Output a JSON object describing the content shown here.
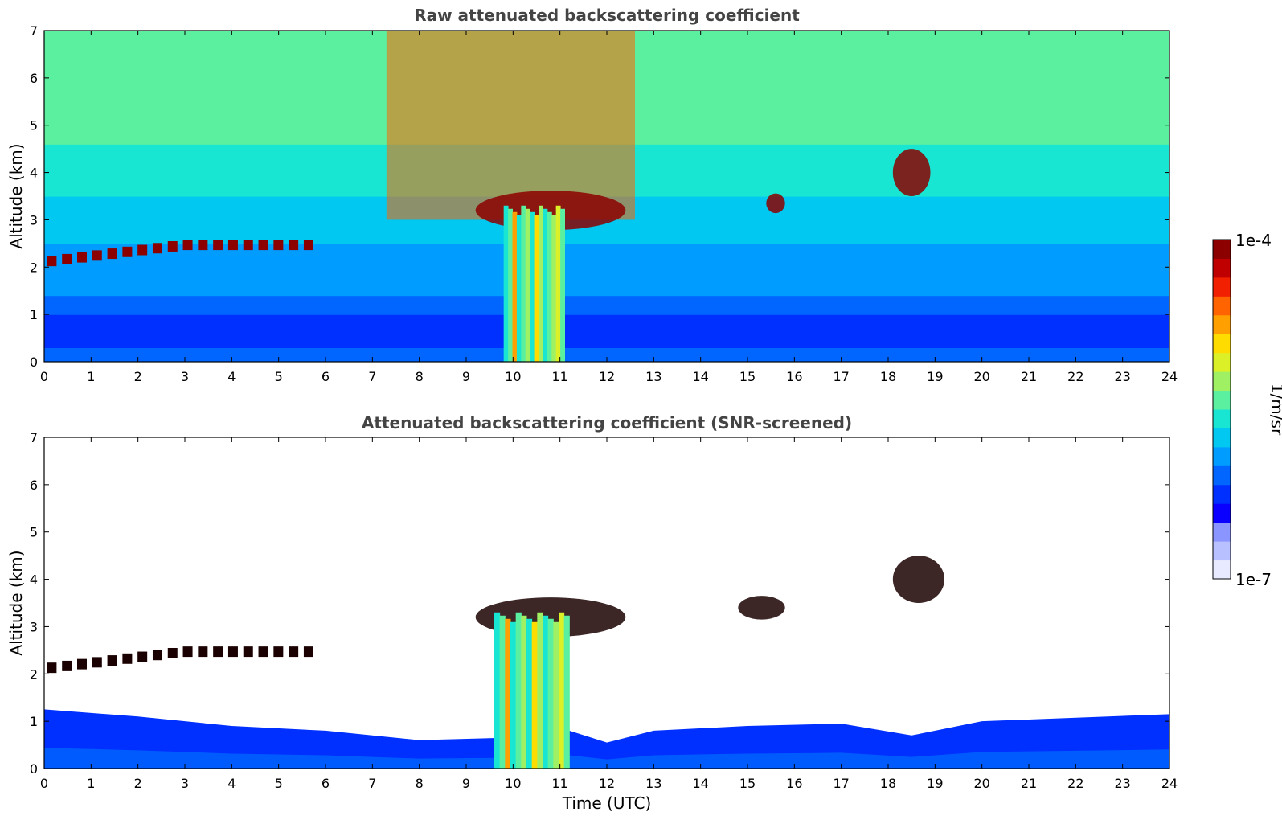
{
  "colorbar": {
    "max_label": "1e-4",
    "min_label": "1e-7",
    "unit_label": "1/m/sr",
    "colors": [
      "#e8ebff",
      "#b8c0ff",
      "#8a95ff",
      "#0a00ff",
      "#0030ff",
      "#0066ff",
      "#009cff",
      "#00c8f0",
      "#19e6d2",
      "#5af0a0",
      "#a0f064",
      "#dcf028",
      "#ffdc00",
      "#ffa000",
      "#ff6400",
      "#f02000",
      "#c00000",
      "#8c0000"
    ]
  },
  "chart_data": [
    {
      "type": "heatmap",
      "title": "Raw attenuated backscattering coefficient",
      "xlabel": "",
      "ylabel": "Altitude (km)",
      "xlim": [
        0,
        24
      ],
      "ylim": [
        0,
        7
      ],
      "x_ticks": [
        "0",
        "1",
        "2",
        "3",
        "4",
        "5",
        "6",
        "7",
        "8",
        "9",
        "10",
        "11",
        "12",
        "13",
        "14",
        "15",
        "16",
        "17",
        "18",
        "19",
        "20",
        "21",
        "22",
        "23",
        "24"
      ],
      "y_ticks": [
        "0",
        "1",
        "2",
        "3",
        "4",
        "5",
        "6",
        "7"
      ],
      "color_scale": "log",
      "color_range": [
        1e-07,
        0.0001
      ],
      "layers": [
        {
          "feature": "boundary layer / noise transition",
          "altitude_km": [
            0,
            1.2
          ],
          "level": 0.2
        },
        {
          "feature": "noisy sky background",
          "altitude_km": [
            1.2,
            7
          ],
          "level": 0.55
        },
        {
          "feature": "elevated noise region",
          "time_utc": [
            7.3,
            12.6
          ],
          "altitude_km": [
            3,
            7
          ],
          "level": 0.8
        }
      ],
      "features": [
        {
          "feature": "thin cloud layer",
          "time_utc": [
            0,
            5.8
          ],
          "altitude_km": [
            2.0,
            2.6
          ],
          "level": 0.98
        },
        {
          "feature": "cloud",
          "time_utc": [
            9.2,
            12.4
          ],
          "altitude_km": [
            2.7,
            3.7
          ],
          "level": 0.98
        },
        {
          "feature": "precipitation column",
          "time_utc": [
            9.8,
            11.1
          ],
          "altitude_km": [
            0,
            3.3
          ],
          "level": 0.55
        },
        {
          "feature": "cloud",
          "time_utc": [
            15.4,
            15.8
          ],
          "altitude_km": [
            3.1,
            3.6
          ],
          "level": 0.98
        },
        {
          "feature": "cloud",
          "time_utc": [
            18.1,
            18.9
          ],
          "altitude_km": [
            3.4,
            4.6
          ],
          "level": 0.98
        }
      ]
    },
    {
      "type": "heatmap",
      "title": "Attenuated backscattering coefficient (SNR-screened)",
      "xlabel": "Time (UTC)",
      "ylabel": "Altitude (km)",
      "xlim": [
        0,
        24
      ],
      "ylim": [
        0,
        7
      ],
      "x_ticks": [
        "0",
        "1",
        "2",
        "3",
        "4",
        "5",
        "6",
        "7",
        "8",
        "9",
        "10",
        "11",
        "12",
        "13",
        "14",
        "15",
        "16",
        "17",
        "18",
        "19",
        "20",
        "21",
        "22",
        "23",
        "24"
      ],
      "y_ticks": [
        "0",
        "1",
        "2",
        "3",
        "4",
        "5",
        "6",
        "7"
      ],
      "color_scale": "log",
      "color_range": [
        1e-07,
        0.0001
      ],
      "boundary_layer_top_km": [
        [
          0,
          1.25
        ],
        [
          2,
          1.1
        ],
        [
          4,
          0.9
        ],
        [
          6,
          0.8
        ],
        [
          8,
          0.6
        ],
        [
          9.8,
          0.65
        ],
        [
          11.2,
          0.8
        ],
        [
          12,
          0.55
        ],
        [
          13,
          0.8
        ],
        [
          15,
          0.9
        ],
        [
          17,
          0.95
        ],
        [
          18.5,
          0.7
        ],
        [
          20,
          1.0
        ],
        [
          24,
          1.15
        ]
      ],
      "features": [
        {
          "feature": "thin cloud layer",
          "time_utc": [
            0,
            5.8
          ],
          "altitude_km": [
            2.0,
            2.6
          ],
          "level": 0.98
        },
        {
          "feature": "cloud",
          "time_utc": [
            9.2,
            12.4
          ],
          "altitude_km": [
            2.7,
            3.7
          ],
          "level": 0.98
        },
        {
          "feature": "precipitation column",
          "time_utc": [
            9.6,
            11.2
          ],
          "altitude_km": [
            0,
            3.3
          ],
          "level": 0.55
        },
        {
          "feature": "cloud",
          "time_utc": [
            14.8,
            15.8
          ],
          "altitude_km": [
            3.1,
            3.7
          ],
          "level": 0.98
        },
        {
          "feature": "cloud",
          "time_utc": [
            18.1,
            19.2
          ],
          "altitude_km": [
            3.4,
            4.6
          ],
          "level": 0.98
        }
      ]
    }
  ]
}
